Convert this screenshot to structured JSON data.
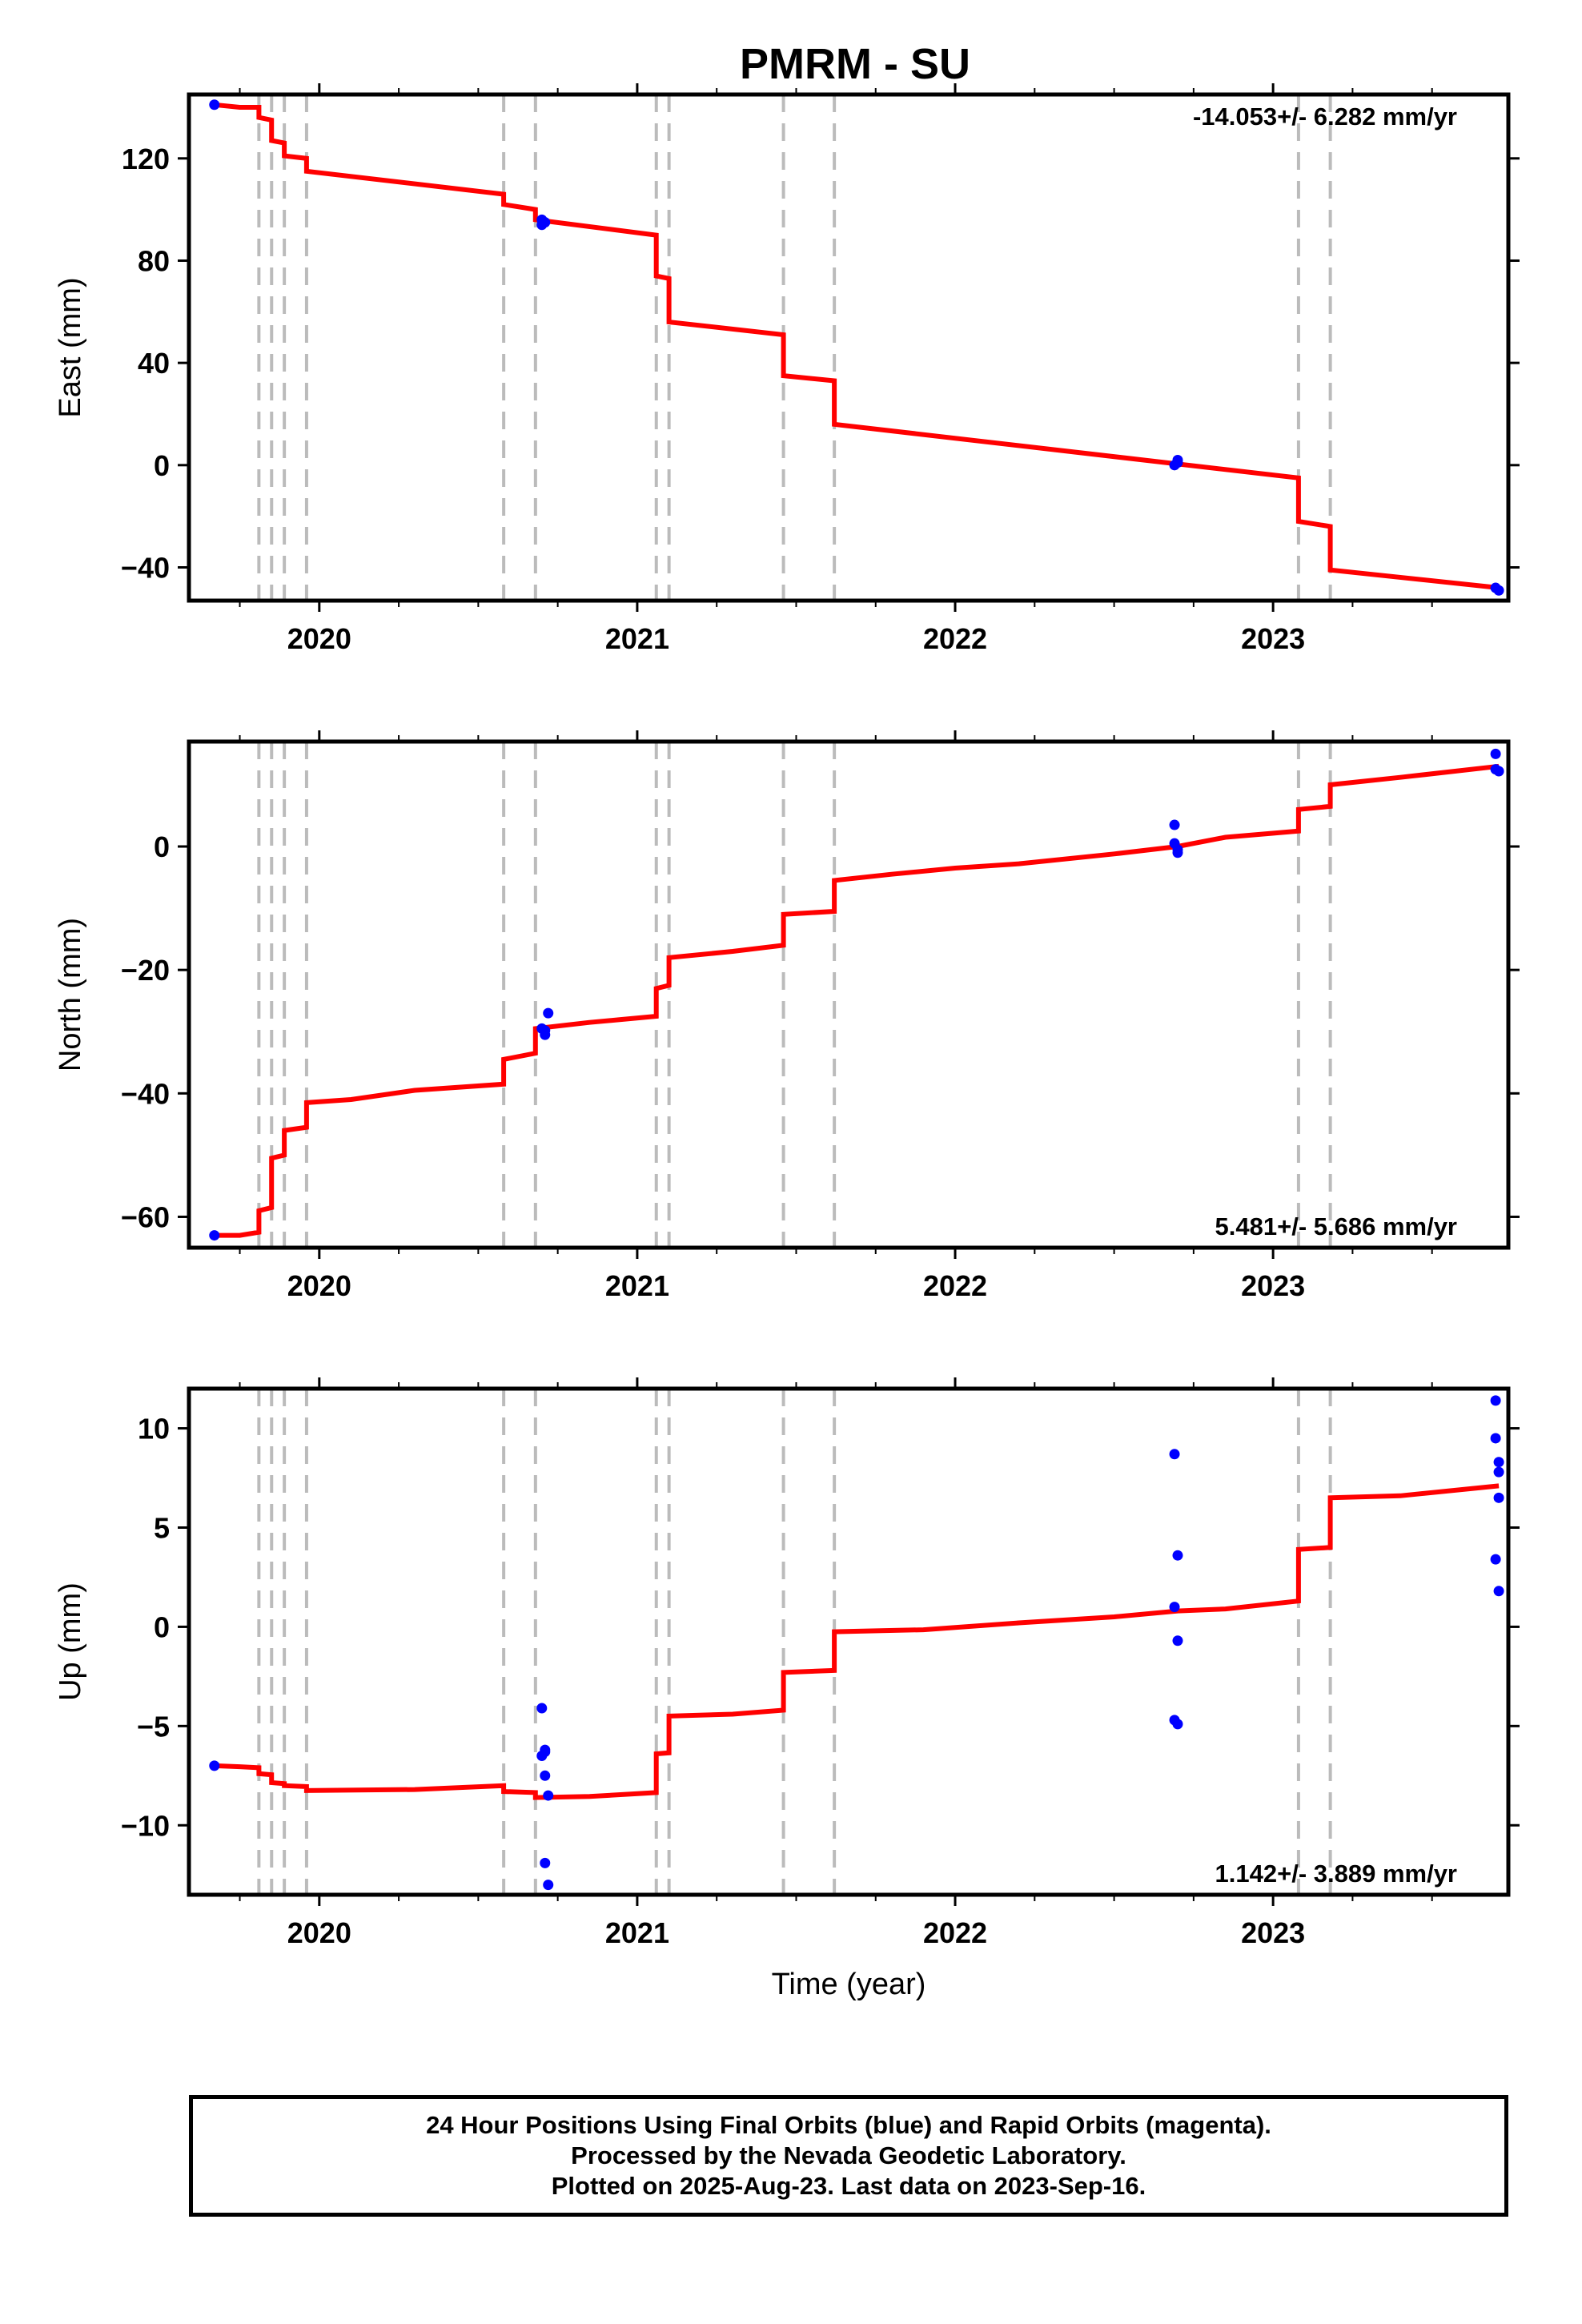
{
  "title": "PMRM - SU",
  "footer": {
    "line1": "24 Hour Positions Using Final Orbits (blue) and Rapid Orbits (magenta).",
    "line2": "Processed by the Nevada Geodetic Laboratory.",
    "line3": "Plotted on 2025-Aug-23. Last data on 2023-Sep-16."
  },
  "colors": {
    "model_line": "#ff0000",
    "final_orbits": "#0000ff",
    "event_lines": "#bbbbbb",
    "frame": "#000000"
  },
  "event_lines_x": [
    2019.81,
    2019.85,
    2019.89,
    2019.96,
    2020.58,
    2020.68,
    2021.06,
    2021.1,
    2021.46,
    2021.62,
    2023.08,
    2023.18
  ],
  "chart_data": [
    {
      "type": "line",
      "title": "PMRM - SU",
      "ylabel": "East (mm)",
      "xlabel": "",
      "xlim": [
        2019.59,
        2023.74
      ],
      "ylim": [
        -53,
        145
      ],
      "x_ticks": [
        2020,
        2021,
        2022,
        2023
      ],
      "x_tick_labels": [
        "2020",
        "2021",
        "2022",
        "2023"
      ],
      "y_ticks": [
        -40,
        0,
        40,
        80,
        120
      ],
      "y_tick_labels": [
        "−40",
        "0",
        "40",
        "80",
        "120"
      ],
      "rate_label": "-14.053+/- 6.282 mm/yr",
      "rate_position": "top-right",
      "model": {
        "x": [
          2019.67,
          2019.75,
          2019.81,
          2019.81,
          2019.85,
          2019.85,
          2019.89,
          2019.89,
          2019.96,
          2019.96,
          2020.58,
          2020.58,
          2020.68,
          2020.68,
          2021.06,
          2021.06,
          2021.1,
          2021.1,
          2021.46,
          2021.46,
          2021.62,
          2021.62,
          2023.08,
          2023.08,
          2023.18,
          2023.18,
          2023.71
        ],
        "y": [
          141,
          140,
          140,
          136,
          135,
          127,
          126,
          121,
          120,
          115,
          106,
          102,
          100,
          96,
          90,
          74,
          73,
          56,
          51,
          35,
          33,
          16,
          -5,
          -22,
          -24,
          -41,
          -48
        ]
      },
      "observations": {
        "x": [
          2019.67,
          2020.7,
          2020.7,
          2020.71,
          2022.69,
          2022.7,
          2022.7,
          2023.7,
          2023.71
        ],
        "y": [
          141,
          94,
          96,
          95,
          0,
          2,
          1,
          -48,
          -49
        ]
      }
    },
    {
      "type": "line",
      "title": "",
      "ylabel": "North (mm)",
      "xlabel": "",
      "xlim": [
        2019.59,
        2023.74
      ],
      "ylim": [
        -65,
        17
      ],
      "x_ticks": [
        2020,
        2021,
        2022,
        2023
      ],
      "x_tick_labels": [
        "2020",
        "2021",
        "2022",
        "2023"
      ],
      "y_ticks": [
        -60,
        -40,
        -20,
        0
      ],
      "y_tick_labels": [
        "−60",
        "−40",
        "−20",
        "0"
      ],
      "rate_label": "5.481+/- 5.686 mm/yr",
      "rate_position": "bottom-right",
      "model": {
        "x": [
          2019.67,
          2019.75,
          2019.81,
          2019.81,
          2019.85,
          2019.85,
          2019.89,
          2019.89,
          2019.96,
          2019.96,
          2020.1,
          2020.3,
          2020.58,
          2020.58,
          2020.68,
          2020.68,
          2020.85,
          2021.06,
          2021.06,
          2021.1,
          2021.1,
          2021.3,
          2021.46,
          2021.46,
          2021.62,
          2021.62,
          2021.8,
          2022.0,
          2022.2,
          2022.5,
          2022.7,
          2022.85,
          2023.08,
          2023.08,
          2023.18,
          2023.18,
          2023.4,
          2023.71
        ],
        "y": [
          -63,
          -63,
          -62.5,
          -59,
          -58.5,
          -50.5,
          -50,
          -46,
          -45.5,
          -41.5,
          -41,
          -39.5,
          -38.5,
          -34.5,
          -33.5,
          -29.5,
          -28.5,
          -27.5,
          -23,
          -22.5,
          -18,
          -17,
          -16,
          -11,
          -10.5,
          -5.5,
          -4.5,
          -3.5,
          -2.8,
          -1.2,
          0,
          1.5,
          2.5,
          6,
          6.5,
          10,
          11.2,
          13
        ]
      },
      "observations": {
        "x": [
          2019.67,
          2020.7,
          2020.71,
          2020.71,
          2020.72,
          2022.69,
          2022.69,
          2022.7,
          2022.7,
          2023.7,
          2023.7,
          2023.71
        ],
        "y": [
          -63,
          -29.5,
          -30.5,
          -29.8,
          -27,
          3.5,
          0.5,
          -1,
          -0.5,
          15,
          12.5,
          12.2
        ]
      }
    },
    {
      "type": "line",
      "title": "",
      "ylabel": "Up (mm)",
      "xlabel": "Time (year)",
      "xlim": [
        2019.59,
        2023.74
      ],
      "ylim": [
        -13.5,
        12
      ],
      "x_ticks": [
        2020,
        2021,
        2022,
        2023
      ],
      "x_tick_labels": [
        "2020",
        "2021",
        "2022",
        "2023"
      ],
      "y_ticks": [
        -10,
        -5,
        0,
        5,
        10
      ],
      "y_tick_labels": [
        "−10",
        "−5",
        "0",
        "5",
        "10"
      ],
      "rate_label": "1.142+/- 3.889 mm/yr",
      "rate_position": "bottom-right",
      "model": {
        "x": [
          2019.67,
          2019.75,
          2019.81,
          2019.81,
          2019.85,
          2019.85,
          2019.89,
          2019.89,
          2019.96,
          2019.96,
          2020.3,
          2020.58,
          2020.58,
          2020.68,
          2020.68,
          2020.85,
          2021.06,
          2021.06,
          2021.1,
          2021.1,
          2021.3,
          2021.46,
          2021.46,
          2021.62,
          2021.62,
          2021.9,
          2022.2,
          2022.5,
          2022.7,
          2022.85,
          2023.08,
          2023.08,
          2023.18,
          2023.18,
          2023.4,
          2023.71
        ],
        "y": [
          -7,
          -7.05,
          -7.1,
          -7.4,
          -7.45,
          -7.85,
          -7.9,
          -8.0,
          -8.05,
          -8.25,
          -8.2,
          -8.0,
          -8.3,
          -8.35,
          -8.6,
          -8.55,
          -8.35,
          -6.4,
          -6.35,
          -4.5,
          -4.4,
          -4.2,
          -2.3,
          -2.2,
          -0.25,
          -0.15,
          0.2,
          0.5,
          0.8,
          0.9,
          1.3,
          3.9,
          4.0,
          6.5,
          6.6,
          7.1
        ]
      },
      "observations": {
        "x": [
          2019.67,
          2020.7,
          2020.7,
          2020.71,
          2020.71,
          2020.71,
          2020.71,
          2020.72,
          2020.72,
          2022.69,
          2022.69,
          2022.69,
          2022.7,
          2022.7,
          2022.7,
          2023.7,
          2023.7,
          2023.71,
          2023.71,
          2023.71,
          2023.7,
          2023.71
        ],
        "y": [
          -7,
          -4.1,
          -6.5,
          -6.2,
          -6.3,
          -7.5,
          -11.9,
          -13,
          -8.5,
          8.7,
          1.0,
          -4.7,
          3.6,
          -0.7,
          -4.9,
          11.4,
          9.5,
          8.3,
          7.8,
          6.5,
          3.4,
          1.8
        ]
      }
    }
  ]
}
